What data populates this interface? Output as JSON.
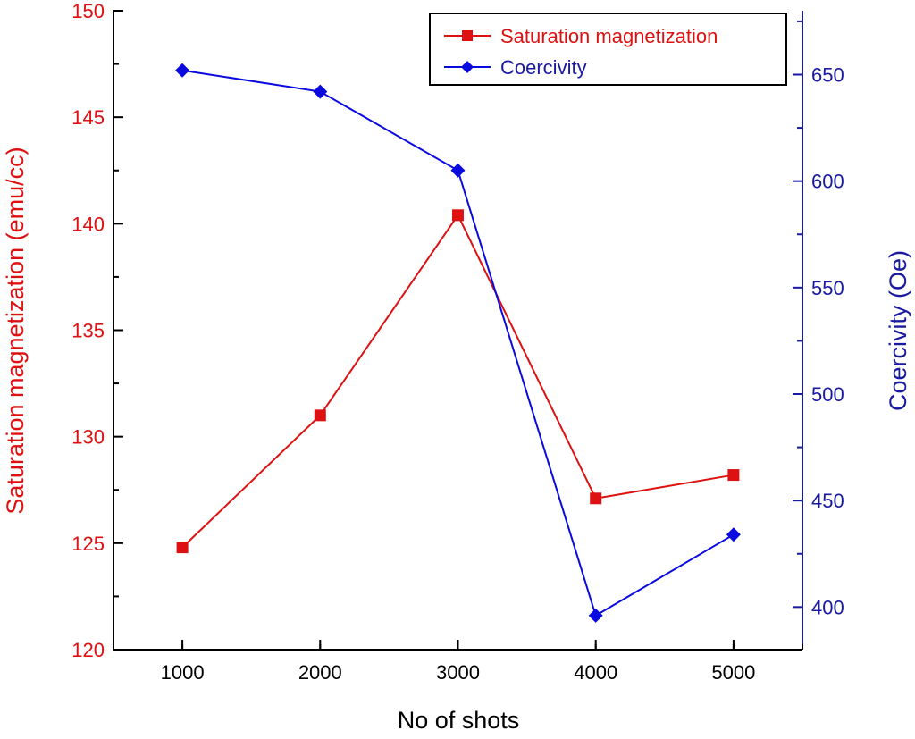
{
  "chart_data": {
    "type": "line",
    "title": "",
    "xlabel": "No of shots",
    "x": [
      1000,
      2000,
      3000,
      4000,
      5000
    ],
    "x_tick_labels": [
      "1000",
      "2000",
      "3000",
      "4000",
      "5000"
    ],
    "xlim": [
      500,
      5500
    ],
    "left_axis": {
      "label": "Saturation magnetization (emu/cc)",
      "ylim": [
        120,
        150
      ],
      "ticks": [
        120,
        125,
        130,
        135,
        140,
        145,
        150
      ],
      "tick_labels": [
        "120",
        "125",
        "130",
        "135",
        "140",
        "145",
        "150"
      ],
      "color": "#dd1111"
    },
    "right_axis": {
      "label": "Coercivity (Oe)",
      "ylim": [
        380,
        680
      ],
      "ticks": [
        400,
        450,
        500,
        550,
        600,
        650
      ],
      "tick_labels": [
        "400",
        "450",
        "500",
        "550",
        "600",
        "650"
      ],
      "color": "#1a1aa0"
    },
    "series": [
      {
        "name": "Saturation magnetization",
        "axis": "left",
        "marker": "square",
        "color": "#dd1111",
        "values": [
          124.8,
          131.0,
          140.4,
          127.1,
          128.2
        ]
      },
      {
        "name": "Coercivity",
        "axis": "right",
        "marker": "diamond",
        "color": "#0a0ae0",
        "values": [
          652,
          642,
          605,
          396,
          434
        ]
      }
    ],
    "legend_position": "top-right",
    "grid": false
  }
}
